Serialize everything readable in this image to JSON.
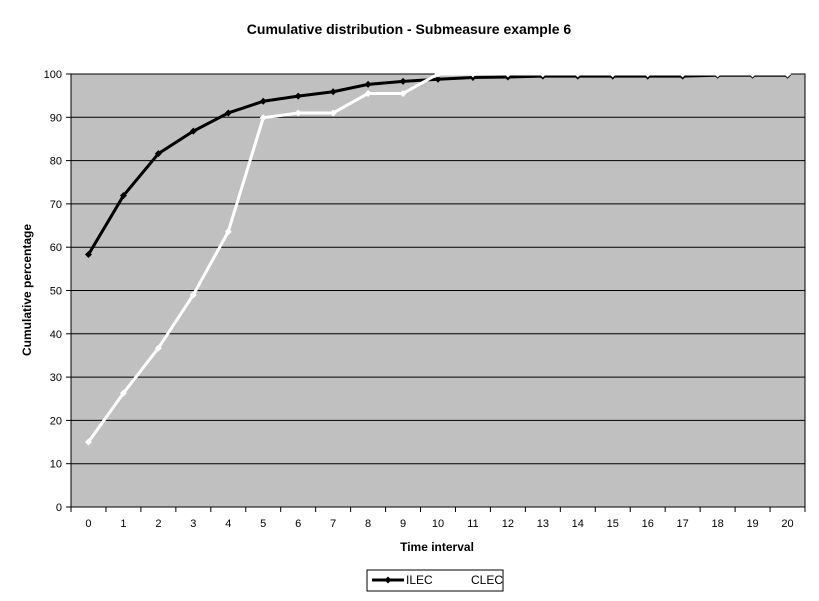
{
  "chart_data": {
    "type": "line",
    "title": "Cumulative distribution - Submeasure example 6",
    "xlabel": "Time interval",
    "ylabel": "Cumulative percentage",
    "categories": [
      "0",
      "1",
      "2",
      "3",
      "4",
      "5",
      "6",
      "7",
      "8",
      "9",
      "10",
      "11",
      "12",
      "13",
      "14",
      "15",
      "16",
      "17",
      "18",
      "19",
      "20"
    ],
    "ylim": [
      0,
      100
    ],
    "yticks": [
      "0",
      "10",
      "20",
      "30",
      "40",
      "50",
      "60",
      "70",
      "80",
      "90",
      "100"
    ],
    "grid": true,
    "legend_position": "bottom",
    "plot_background": "#c0c0c0",
    "series": [
      {
        "name": "ILEC",
        "color": "#000000",
        "values": [
          58.3,
          71.9,
          81.6,
          86.8,
          91.0,
          93.7,
          94.9,
          95.9,
          97.6,
          98.3,
          98.8,
          99.2,
          99.3,
          99.5,
          99.5,
          99.5,
          99.5,
          99.5,
          99.7,
          99.7,
          99.7
        ]
      },
      {
        "name": "CLEC",
        "color": "#ffffff",
        "values": [
          15.0,
          26.3,
          36.7,
          49.0,
          63.6,
          89.9,
          91.0,
          91.0,
          95.5,
          95.5,
          100,
          100,
          100,
          100,
          100,
          100,
          100,
          100,
          100,
          100,
          100
        ]
      }
    ]
  }
}
